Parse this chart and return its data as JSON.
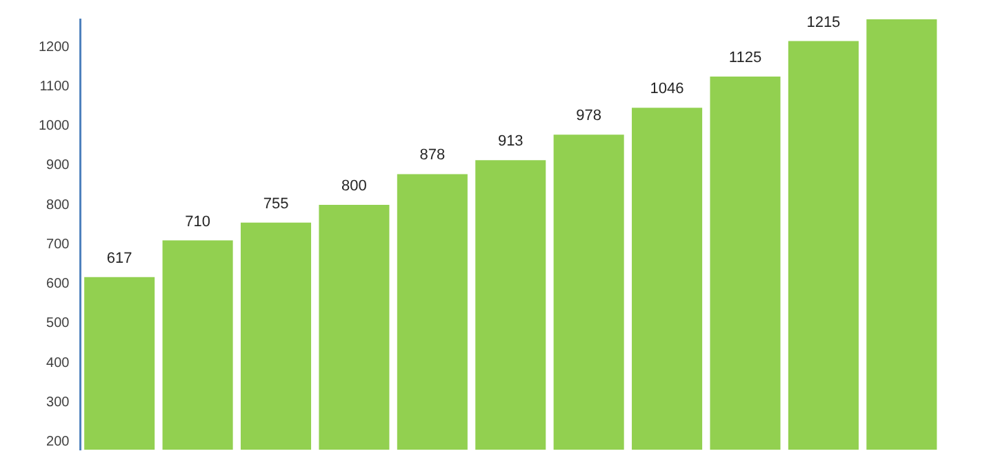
{
  "chart_data": {
    "type": "bar",
    "categories": [
      null,
      null,
      null,
      null,
      null,
      null,
      null,
      null,
      null,
      null,
      null
    ],
    "values": [
      617,
      710,
      755,
      800,
      878,
      913,
      978,
      1046,
      1125,
      1215,
      1270
    ],
    "value_labels": [
      "617",
      "710",
      "755",
      "800",
      "878",
      "913",
      "978",
      "1046",
      "1125",
      "1215",
      null
    ],
    "color": "#92d050",
    "ylim": [
      180,
      1270
    ],
    "yticks": [
      200,
      300,
      400,
      500,
      600,
      700,
      800,
      900,
      1000,
      1100,
      1200
    ],
    "grid": false,
    "legend": false,
    "tick_labels": "y"
  }
}
